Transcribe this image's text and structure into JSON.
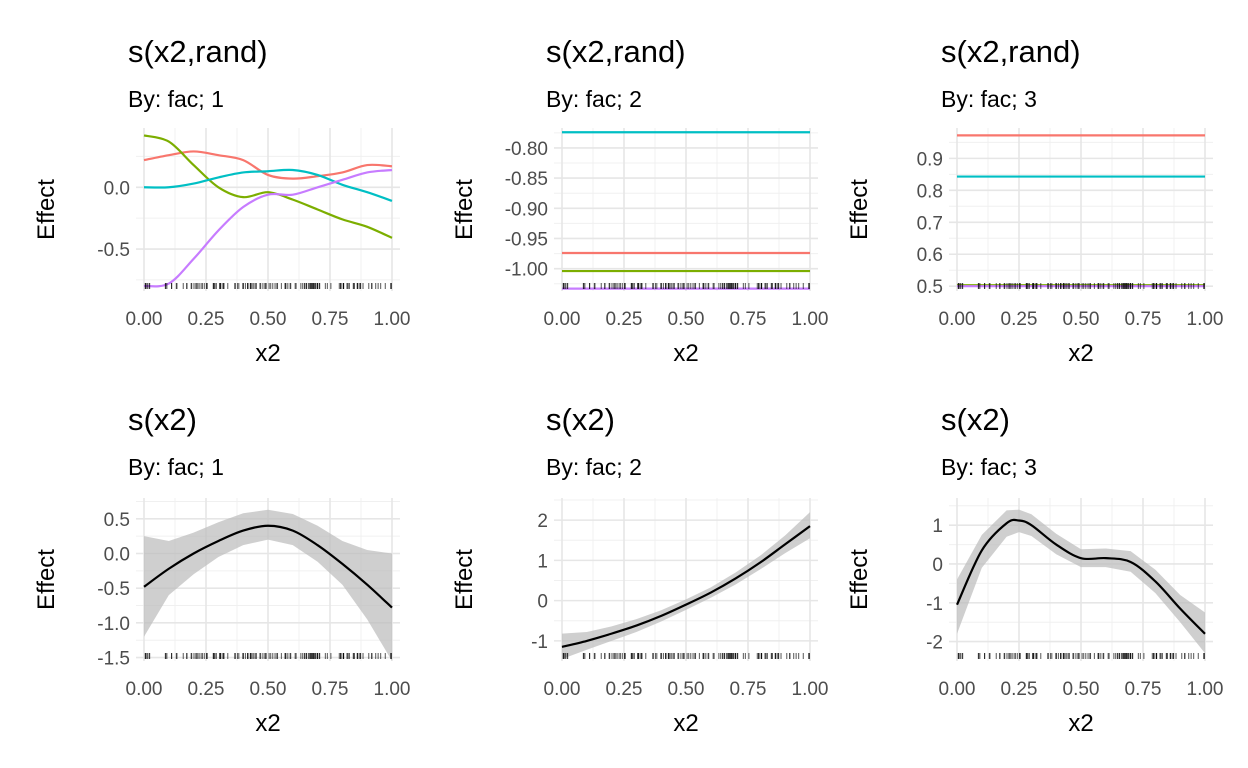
{
  "colors": {
    "series_1": "#F8766D",
    "series_2": "#7CAE00",
    "series_3": "#00BFC4",
    "series_4": "#C77CFF",
    "fit_line": "#000000",
    "ci_band": "#bdbdbd"
  },
  "chart_data": [
    {
      "type": "line",
      "title": "s(x2,rand)",
      "subtitle": "By: fac; 1",
      "xlabel": "x2",
      "ylabel": "Effect",
      "xlim": [
        0,
        1
      ],
      "ylim": [
        -0.84,
        0.48
      ],
      "xticks": [
        0,
        0.25,
        0.5,
        0.75,
        1
      ],
      "xtick_labels": [
        "0.00",
        "0.25",
        "0.50",
        "0.75",
        "1.00"
      ],
      "yticks": [
        -0.5,
        0
      ],
      "ytick_labels": [
        "-0.5",
        "0.0"
      ],
      "grid": true,
      "rug": true,
      "series": [
        {
          "color": "#F8766D",
          "x": [
            0,
            0.1,
            0.2,
            0.3,
            0.4,
            0.5,
            0.6,
            0.7,
            0.8,
            0.9,
            1.0
          ],
          "y": [
            0.22,
            0.26,
            0.29,
            0.26,
            0.22,
            0.1,
            0.07,
            0.09,
            0.12,
            0.18,
            0.17
          ]
        },
        {
          "color": "#7CAE00",
          "x": [
            0,
            0.1,
            0.2,
            0.3,
            0.4,
            0.5,
            0.6,
            0.7,
            0.8,
            0.9,
            1.0
          ],
          "y": [
            0.42,
            0.37,
            0.18,
            0.0,
            -0.08,
            -0.04,
            -0.1,
            -0.18,
            -0.26,
            -0.32,
            -0.41
          ]
        },
        {
          "color": "#00BFC4",
          "x": [
            0,
            0.1,
            0.2,
            0.3,
            0.4,
            0.5,
            0.6,
            0.7,
            0.8,
            0.9,
            1.0
          ],
          "y": [
            0.0,
            0.0,
            0.03,
            0.08,
            0.12,
            0.13,
            0.14,
            0.1,
            0.02,
            -0.04,
            -0.11
          ]
        },
        {
          "color": "#C77CFF",
          "x": [
            0,
            0.1,
            0.2,
            0.3,
            0.4,
            0.5,
            0.6,
            0.7,
            0.8,
            0.9,
            1.0
          ],
          "y": [
            -0.8,
            -0.78,
            -0.58,
            -0.35,
            -0.16,
            -0.06,
            -0.06,
            0.0,
            0.06,
            0.12,
            0.14
          ]
        }
      ]
    },
    {
      "type": "line",
      "title": "s(x2,rand)",
      "subtitle": "By: fac; 2",
      "xlabel": "x2",
      "ylabel": "Effect",
      "xlim": [
        0,
        1
      ],
      "ylim": [
        -1.037,
        -0.767
      ],
      "xticks": [
        0,
        0.25,
        0.5,
        0.75,
        1
      ],
      "xtick_labels": [
        "0.00",
        "0.25",
        "0.50",
        "0.75",
        "1.00"
      ],
      "yticks": [
        -1.0,
        -0.95,
        -0.9,
        -0.85,
        -0.8
      ],
      "ytick_labels": [
        "-1.00",
        "-0.95",
        "-0.90",
        "-0.85",
        "-0.80"
      ],
      "grid": true,
      "rug": true,
      "series": [
        {
          "color": "#00BFC4",
          "x": [
            0,
            1
          ],
          "y": [
            -0.774,
            -0.774
          ]
        },
        {
          "color": "#F8766D",
          "x": [
            0,
            1
          ],
          "y": [
            -0.974,
            -0.974
          ]
        },
        {
          "color": "#7CAE00",
          "x": [
            0,
            1
          ],
          "y": [
            -1.004,
            -1.004
          ]
        },
        {
          "color": "#C77CFF",
          "x": [
            0,
            1
          ],
          "y": [
            -1.033,
            -1.033
          ]
        }
      ]
    },
    {
      "type": "line",
      "title": "s(x2,rand)",
      "subtitle": "By: fac; 3",
      "xlabel": "x2",
      "ylabel": "Effect",
      "xlim": [
        0,
        1
      ],
      "ylim": [
        0.485,
        0.995
      ],
      "xticks": [
        0,
        0.25,
        0.5,
        0.75,
        1
      ],
      "xtick_labels": [
        "0.00",
        "0.25",
        "0.50",
        "0.75",
        "1.00"
      ],
      "yticks": [
        0.5,
        0.6,
        0.7,
        0.8,
        0.9
      ],
      "ytick_labels": [
        "0.5",
        "0.6",
        "0.7",
        "0.8",
        "0.9"
      ],
      "grid": true,
      "rug": true,
      "series": [
        {
          "color": "#F8766D",
          "x": [
            0,
            1
          ],
          "y": [
            0.972,
            0.972
          ]
        },
        {
          "color": "#00BFC4",
          "x": [
            0,
            1
          ],
          "y": [
            0.843,
            0.843
          ]
        },
        {
          "color": "#7CAE00",
          "x": [
            0,
            1
          ],
          "y": [
            0.503,
            0.503
          ]
        },
        {
          "color": "#C77CFF",
          "x": [
            0,
            1
          ],
          "y": [
            0.5,
            0.5
          ]
        }
      ]
    },
    {
      "type": "line",
      "title": "s(x2)",
      "subtitle": "By: fac; 1",
      "xlabel": "x2",
      "ylabel": "Effect",
      "xlim": [
        0,
        1
      ],
      "ylim": [
        -1.55,
        0.8
      ],
      "xticks": [
        0,
        0.25,
        0.5,
        0.75,
        1
      ],
      "xtick_labels": [
        "0.00",
        "0.25",
        "0.50",
        "0.75",
        "1.00"
      ],
      "yticks": [
        -1.5,
        -1.0,
        -0.5,
        0.0,
        0.5
      ],
      "ytick_labels": [
        "-1.5",
        "-1.0",
        "-0.5",
        "0.0",
        "0.5"
      ],
      "grid": true,
      "rug": true,
      "series": [
        {
          "color": "#000000",
          "x": [
            0,
            0.1,
            0.2,
            0.3,
            0.4,
            0.5,
            0.6,
            0.7,
            0.8,
            0.9,
            1.0
          ],
          "y": [
            -0.48,
            -0.22,
            0.0,
            0.18,
            0.33,
            0.4,
            0.33,
            0.12,
            -0.15,
            -0.45,
            -0.78
          ],
          "lower": [
            -1.2,
            -0.6,
            -0.3,
            -0.05,
            0.12,
            0.2,
            0.12,
            -0.12,
            -0.45,
            -0.95,
            -1.55
          ],
          "upper": [
            0.25,
            0.18,
            0.3,
            0.45,
            0.58,
            0.63,
            0.57,
            0.4,
            0.18,
            0.05,
            0.0
          ]
        }
      ]
    },
    {
      "type": "line",
      "title": "s(x2)",
      "subtitle": "By: fac; 2",
      "xlabel": "x2",
      "ylabel": "Effect",
      "xlim": [
        0,
        1
      ],
      "ylim": [
        -1.5,
        2.55
      ],
      "xticks": [
        0,
        0.25,
        0.5,
        0.75,
        1
      ],
      "xtick_labels": [
        "0.00",
        "0.25",
        "0.50",
        "0.75",
        "1.00"
      ],
      "yticks": [
        -1,
        0,
        1,
        2
      ],
      "ytick_labels": [
        "-1",
        "0",
        "1",
        "2"
      ],
      "grid": true,
      "rug": true,
      "series": [
        {
          "color": "#000000",
          "x": [
            0,
            0.1,
            0.2,
            0.3,
            0.4,
            0.5,
            0.6,
            0.7,
            0.8,
            0.9,
            1.0
          ],
          "y": [
            -1.15,
            -1.0,
            -0.82,
            -0.62,
            -0.38,
            -0.1,
            0.2,
            0.55,
            0.95,
            1.4,
            1.85
          ],
          "lower": [
            -1.45,
            -1.22,
            -1.0,
            -0.78,
            -0.52,
            -0.23,
            0.07,
            0.4,
            0.78,
            1.18,
            1.55
          ],
          "upper": [
            -0.82,
            -0.78,
            -0.64,
            -0.46,
            -0.24,
            0.03,
            0.33,
            0.7,
            1.12,
            1.62,
            2.2
          ]
        }
      ]
    },
    {
      "type": "line",
      "title": "s(x2)",
      "subtitle": "By: fac; 3",
      "xlabel": "x2",
      "ylabel": "Effect",
      "xlim": [
        0,
        1
      ],
      "ylim": [
        -2.5,
        1.7
      ],
      "xticks": [
        0,
        0.25,
        0.5,
        0.75,
        1
      ],
      "xtick_labels": [
        "0.00",
        "0.25",
        "0.50",
        "0.75",
        "1.00"
      ],
      "yticks": [
        -2,
        -1,
        0,
        1
      ],
      "ytick_labels": [
        "-2",
        "-1",
        "0",
        "1"
      ],
      "grid": true,
      "rug": true,
      "series": [
        {
          "color": "#000000",
          "x": [
            0,
            0.1,
            0.2,
            0.25,
            0.3,
            0.4,
            0.5,
            0.6,
            0.7,
            0.8,
            0.9,
            1.0
          ],
          "y": [
            -1.05,
            0.35,
            1.05,
            1.12,
            1.0,
            0.5,
            0.15,
            0.15,
            0.05,
            -0.45,
            -1.15,
            -1.8
          ],
          "lower": [
            -1.8,
            -0.1,
            0.7,
            0.82,
            0.72,
            0.25,
            -0.08,
            -0.08,
            -0.2,
            -0.75,
            -1.5,
            -2.3
          ],
          "upper": [
            -0.4,
            0.75,
            1.38,
            1.4,
            1.28,
            0.78,
            0.38,
            0.4,
            0.33,
            -0.15,
            -0.8,
            -1.25
          ]
        }
      ]
    }
  ]
}
